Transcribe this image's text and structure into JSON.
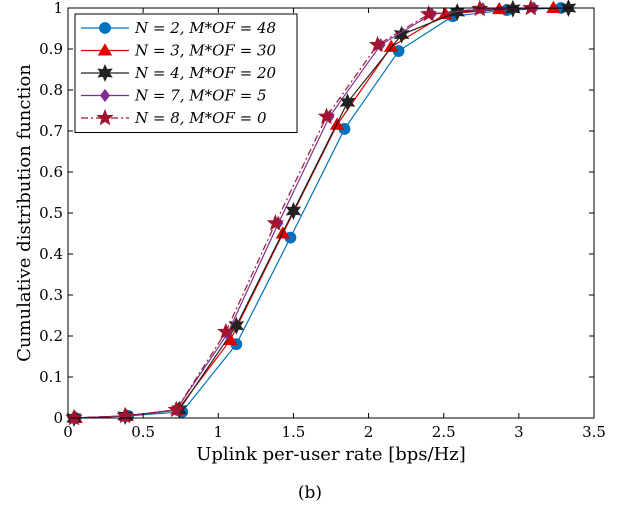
{
  "chart_data": {
    "type": "line",
    "xlabel": "Uplink per-user rate [bps/Hz]",
    "ylabel": "Cumulative distribution function",
    "caption": "(b)",
    "xlim": [
      0,
      3.5
    ],
    "ylim": [
      0,
      1
    ],
    "xticks": [
      0,
      0.5,
      1,
      1.5,
      2,
      2.5,
      3,
      3.5
    ],
    "xtick_labels": [
      "0",
      "0.5",
      "1",
      "1.5",
      "2",
      "2.5",
      "3",
      "3.5"
    ],
    "yticks": [
      0,
      0.1,
      0.2,
      0.3,
      0.4,
      0.5,
      0.6,
      0.7,
      0.8,
      0.9,
      1
    ],
    "ytick_labels": [
      "0",
      "0.1",
      "0.2",
      "0.3",
      "0.4",
      "0.5",
      "0.6",
      "0.7",
      "0.8",
      "0.9",
      "1"
    ],
    "grid": false,
    "legend_position": "top-left",
    "series": [
      {
        "name": "N = 2, M*OF = 48",
        "color": "#0072BD",
        "marker": "circle",
        "line": "solid",
        "x": [
          0.05,
          0.4,
          0.76,
          1.12,
          1.48,
          1.84,
          2.2,
          2.56,
          2.92,
          3.28
        ],
        "y": [
          0.0,
          0.005,
          0.015,
          0.18,
          0.44,
          0.705,
          0.895,
          0.98,
          0.995,
          1.0
        ]
      },
      {
        "name": "N = 3, M*OF = 30",
        "color": "#E00000",
        "marker": "triangle",
        "line": "solid",
        "x": [
          0.05,
          0.39,
          0.73,
          1.08,
          1.43,
          1.79,
          2.15,
          2.51,
          2.87,
          3.23
        ],
        "y": [
          0.0,
          0.005,
          0.02,
          0.19,
          0.45,
          0.715,
          0.905,
          0.985,
          0.997,
          1.0
        ]
      },
      {
        "name": "N = 4, M*OF = 20",
        "color": "#222222",
        "marker": "hexagram",
        "line": "solid",
        "x": [
          0.04,
          0.38,
          0.74,
          1.12,
          1.5,
          1.86,
          2.22,
          2.59,
          2.96,
          3.33
        ],
        "y": [
          0.0,
          0.005,
          0.02,
          0.225,
          0.505,
          0.77,
          0.935,
          0.99,
          0.998,
          1.0
        ]
      },
      {
        "name": "N = 7, M*OF = 5",
        "color": "#7E2F8E",
        "marker": "diamond",
        "line": "solid",
        "x": [
          0.04,
          0.38,
          0.72,
          1.06,
          1.4,
          1.74,
          2.08,
          2.42,
          2.76,
          3.1
        ],
        "y": [
          0.0,
          0.005,
          0.02,
          0.205,
          0.475,
          0.735,
          0.91,
          0.985,
          0.998,
          1.0
        ]
      },
      {
        "name": "N = 8, M*OF = 0",
        "color": "#A2142F",
        "marker": "pentagram",
        "line": "dashdot",
        "x": [
          0.04,
          0.38,
          0.72,
          1.05,
          1.38,
          1.72,
          2.06,
          2.4,
          2.74,
          3.08
        ],
        "y": [
          0.0,
          0.005,
          0.02,
          0.21,
          0.475,
          0.735,
          0.91,
          0.985,
          0.998,
          1.0
        ]
      }
    ]
  }
}
